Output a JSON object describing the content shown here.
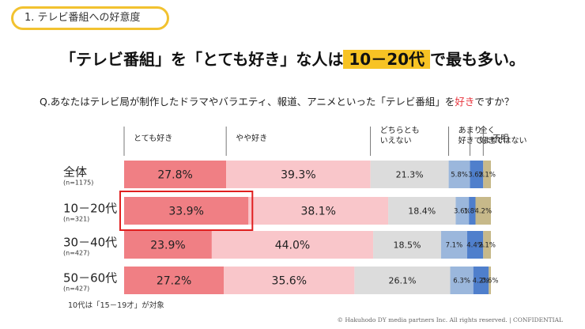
{
  "section_tag": "1. テレビ番組への好意度",
  "headline": {
    "before": "「テレビ番組」を「とても好き」な人は",
    "highlight": "10－20代",
    "after": "で最も多い。"
  },
  "question": {
    "before": "Q.あなたはテレビ局が制作したドラマやバラエティ、報道、アニメといった「テレビ番組」を",
    "emphasis": "好き",
    "after": "ですか？"
  },
  "footnote": "10代は「15－19才」が対象",
  "copyright": "© Hakuhodo DY media partners Inc. All rights reserved. | CONFIDENTIAL",
  "chart_data": {
    "type": "bar",
    "orientation": "horizontal",
    "stacked": true,
    "percent_stacked": true,
    "legend_placement": "top",
    "categories": [
      {
        "label": "全体",
        "sub": "(n=1175)"
      },
      {
        "label": "10－20代",
        "sub": "(n=321)"
      },
      {
        "label": "30－40代",
        "sub": "(n=427)"
      },
      {
        "label": "50－60代",
        "sub": "(n=427)"
      }
    ],
    "highlighted_segment": {
      "category": "10－20代",
      "series": "とても好き"
    },
    "series": [
      {
        "name": "とても好き",
        "color": "#f07f84",
        "values": [
          27.8,
          33.9,
          23.9,
          27.2
        ],
        "labels": [
          "27.8%",
          "33.9%",
          "23.9%",
          "27.2%"
        ]
      },
      {
        "name": "やや好き",
        "color": "#f9c6ca",
        "values": [
          39.3,
          38.1,
          44.0,
          35.6
        ],
        "labels": [
          "39.3%",
          "38.1%",
          "44.0%",
          "35.6%"
        ]
      },
      {
        "name": "どちらともいえない",
        "lines": [
          "どちらとも",
          "いえない"
        ],
        "color": "#dcdcdc",
        "values": [
          21.3,
          18.4,
          18.5,
          26.1
        ],
        "labels": [
          "21.3%",
          "18.4%",
          "18.5%",
          "26.1%"
        ]
      },
      {
        "name": "あまり好きではない",
        "lines": [
          "あまり",
          "好きではない"
        ],
        "color": "#9bb7dc",
        "values": [
          5.8,
          3.6,
          7.1,
          6.3
        ],
        "labels": [
          "5.8%",
          "3.6%",
          "7.1%",
          "6.3%"
        ]
      },
      {
        "name": "全く好きではない",
        "lines": [
          "全く",
          "好きではない"
        ],
        "color": "#4f7fcc",
        "values": [
          3.6,
          1.8,
          4.4,
          4.2
        ],
        "labels": [
          "3.6%",
          "1.8%",
          "4.4%",
          "4.2%"
        ]
      },
      {
        "name": "不明",
        "color": "#c7b98a",
        "values": [
          2.1,
          4.2,
          2.1,
          0.6
        ],
        "labels": [
          "2.1%",
          "4.2%",
          "2.1%",
          "0.6%"
        ]
      }
    ]
  }
}
